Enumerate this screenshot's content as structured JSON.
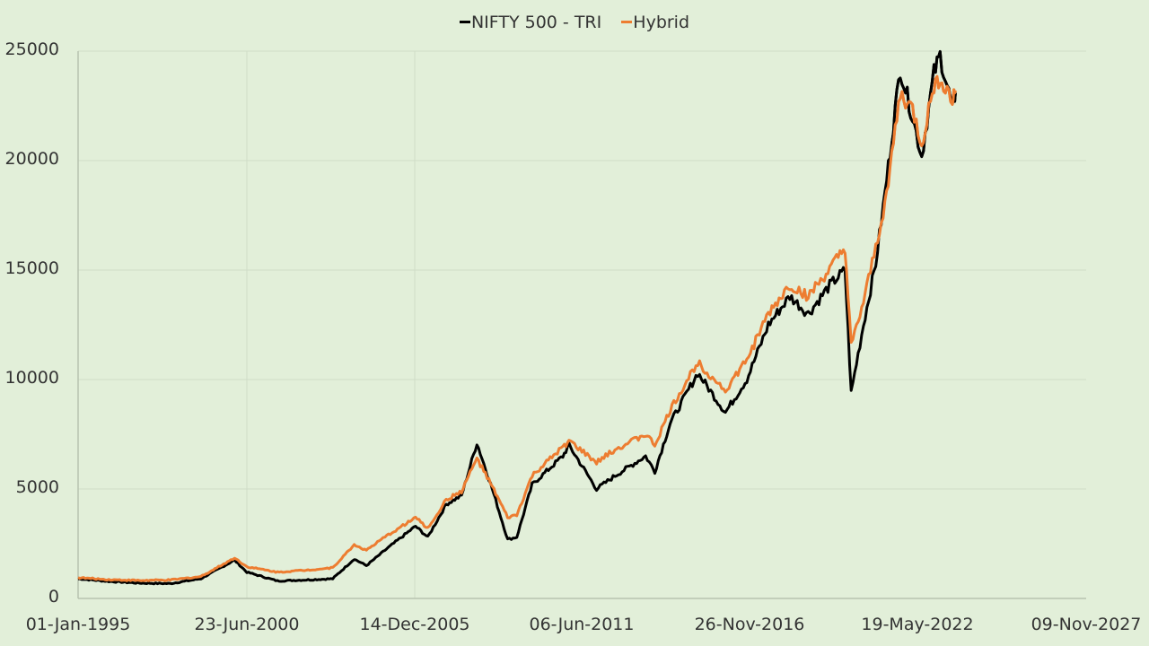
{
  "chart_data": {
    "type": "line",
    "title": "",
    "xlabel": "",
    "ylabel": "",
    "legend": [
      "NIFTY 500 - TRI",
      "Hybrid"
    ],
    "legend_position": "top",
    "grid": true,
    "ylim": [
      0,
      25000
    ],
    "yticks": [
      0,
      5000,
      10000,
      15000,
      20000,
      25000
    ],
    "xticks": [
      "01-Jan-1995",
      "23-Jun-2000",
      "14-Dec-2005",
      "06-Jun-2011",
      "26-Nov-2016",
      "19-May-2022",
      "09-Nov-2027"
    ],
    "xlim_years": [
      1995.0,
      2027.86
    ],
    "x": [
      1995.0,
      1996.0,
      1997.0,
      1998.0,
      1999.0,
      2000.1,
      2000.5,
      2001.5,
      2002.5,
      2003.3,
      2004.0,
      2004.4,
      2005.0,
      2006.0,
      2006.4,
      2007.0,
      2007.5,
      2008.0,
      2008.5,
      2009.0,
      2009.3,
      2009.8,
      2010.8,
      2011.0,
      2011.9,
      2012.5,
      2013.5,
      2013.8,
      2014.3,
      2015.2,
      2016.1,
      2016.8,
      2017.5,
      2018.2,
      2018.8,
      2019.5,
      2020.0,
      2020.2,
      2020.6,
      2021.0,
      2021.3,
      2021.8,
      2022.2,
      2022.5,
      2022.9,
      2023.1,
      2023.5,
      2023.6
    ],
    "series": [
      {
        "name": "NIFTY 500 - TRI",
        "color": "#000000",
        "values": [
          900,
          780,
          700,
          680,
          900,
          1750,
          1200,
          800,
          850,
          900,
          1800,
          1500,
          2200,
          3300,
          2800,
          4300,
          4700,
          7100,
          5000,
          2700,
          2800,
          5200,
          6500,
          7000,
          5000,
          5600,
          6500,
          5800,
          8000,
          10300,
          8500,
          10000,
          12500,
          13800,
          13000,
          14300,
          15000,
          9400,
          12500,
          15300,
          18500,
          24200,
          22000,
          20200,
          24000,
          24800,
          22400,
          23100
        ]
      },
      {
        "name": "Hybrid",
        "color": "#ed7d31",
        "values": [
          950,
          860,
          820,
          840,
          1000,
          1850,
          1450,
          1200,
          1300,
          1400,
          2450,
          2200,
          2800,
          3700,
          3200,
          4500,
          4900,
          6400,
          5100,
          3700,
          3800,
          5600,
          6900,
          7200,
          6200,
          6800,
          7500,
          7000,
          8600,
          10800,
          9500,
          10900,
          13000,
          14300,
          13800,
          15000,
          16000,
          11500,
          13500,
          16000,
          18000,
          23000,
          22300,
          20700,
          23400,
          23800,
          22700,
          23200
        ]
      }
    ]
  },
  "legend": {
    "items": [
      {
        "label": "NIFTY 500 - TRI",
        "color": "#000000"
      },
      {
        "label": "Hybrid",
        "color": "#ed7d31"
      }
    ]
  },
  "axes": {
    "y_labels": [
      "25000",
      "20000",
      "15000",
      "10000",
      "5000",
      "0"
    ],
    "x_labels": [
      "01-Jan-1995",
      "23-Jun-2000",
      "14-Dec-2005",
      "06-Jun-2011",
      "26-Nov-2016",
      "19-May-2022",
      "09-Nov-2027"
    ]
  },
  "colors": {
    "background": "#e2efd9",
    "gridline": "#d0dcc8",
    "axis": "#b8c4b0"
  }
}
